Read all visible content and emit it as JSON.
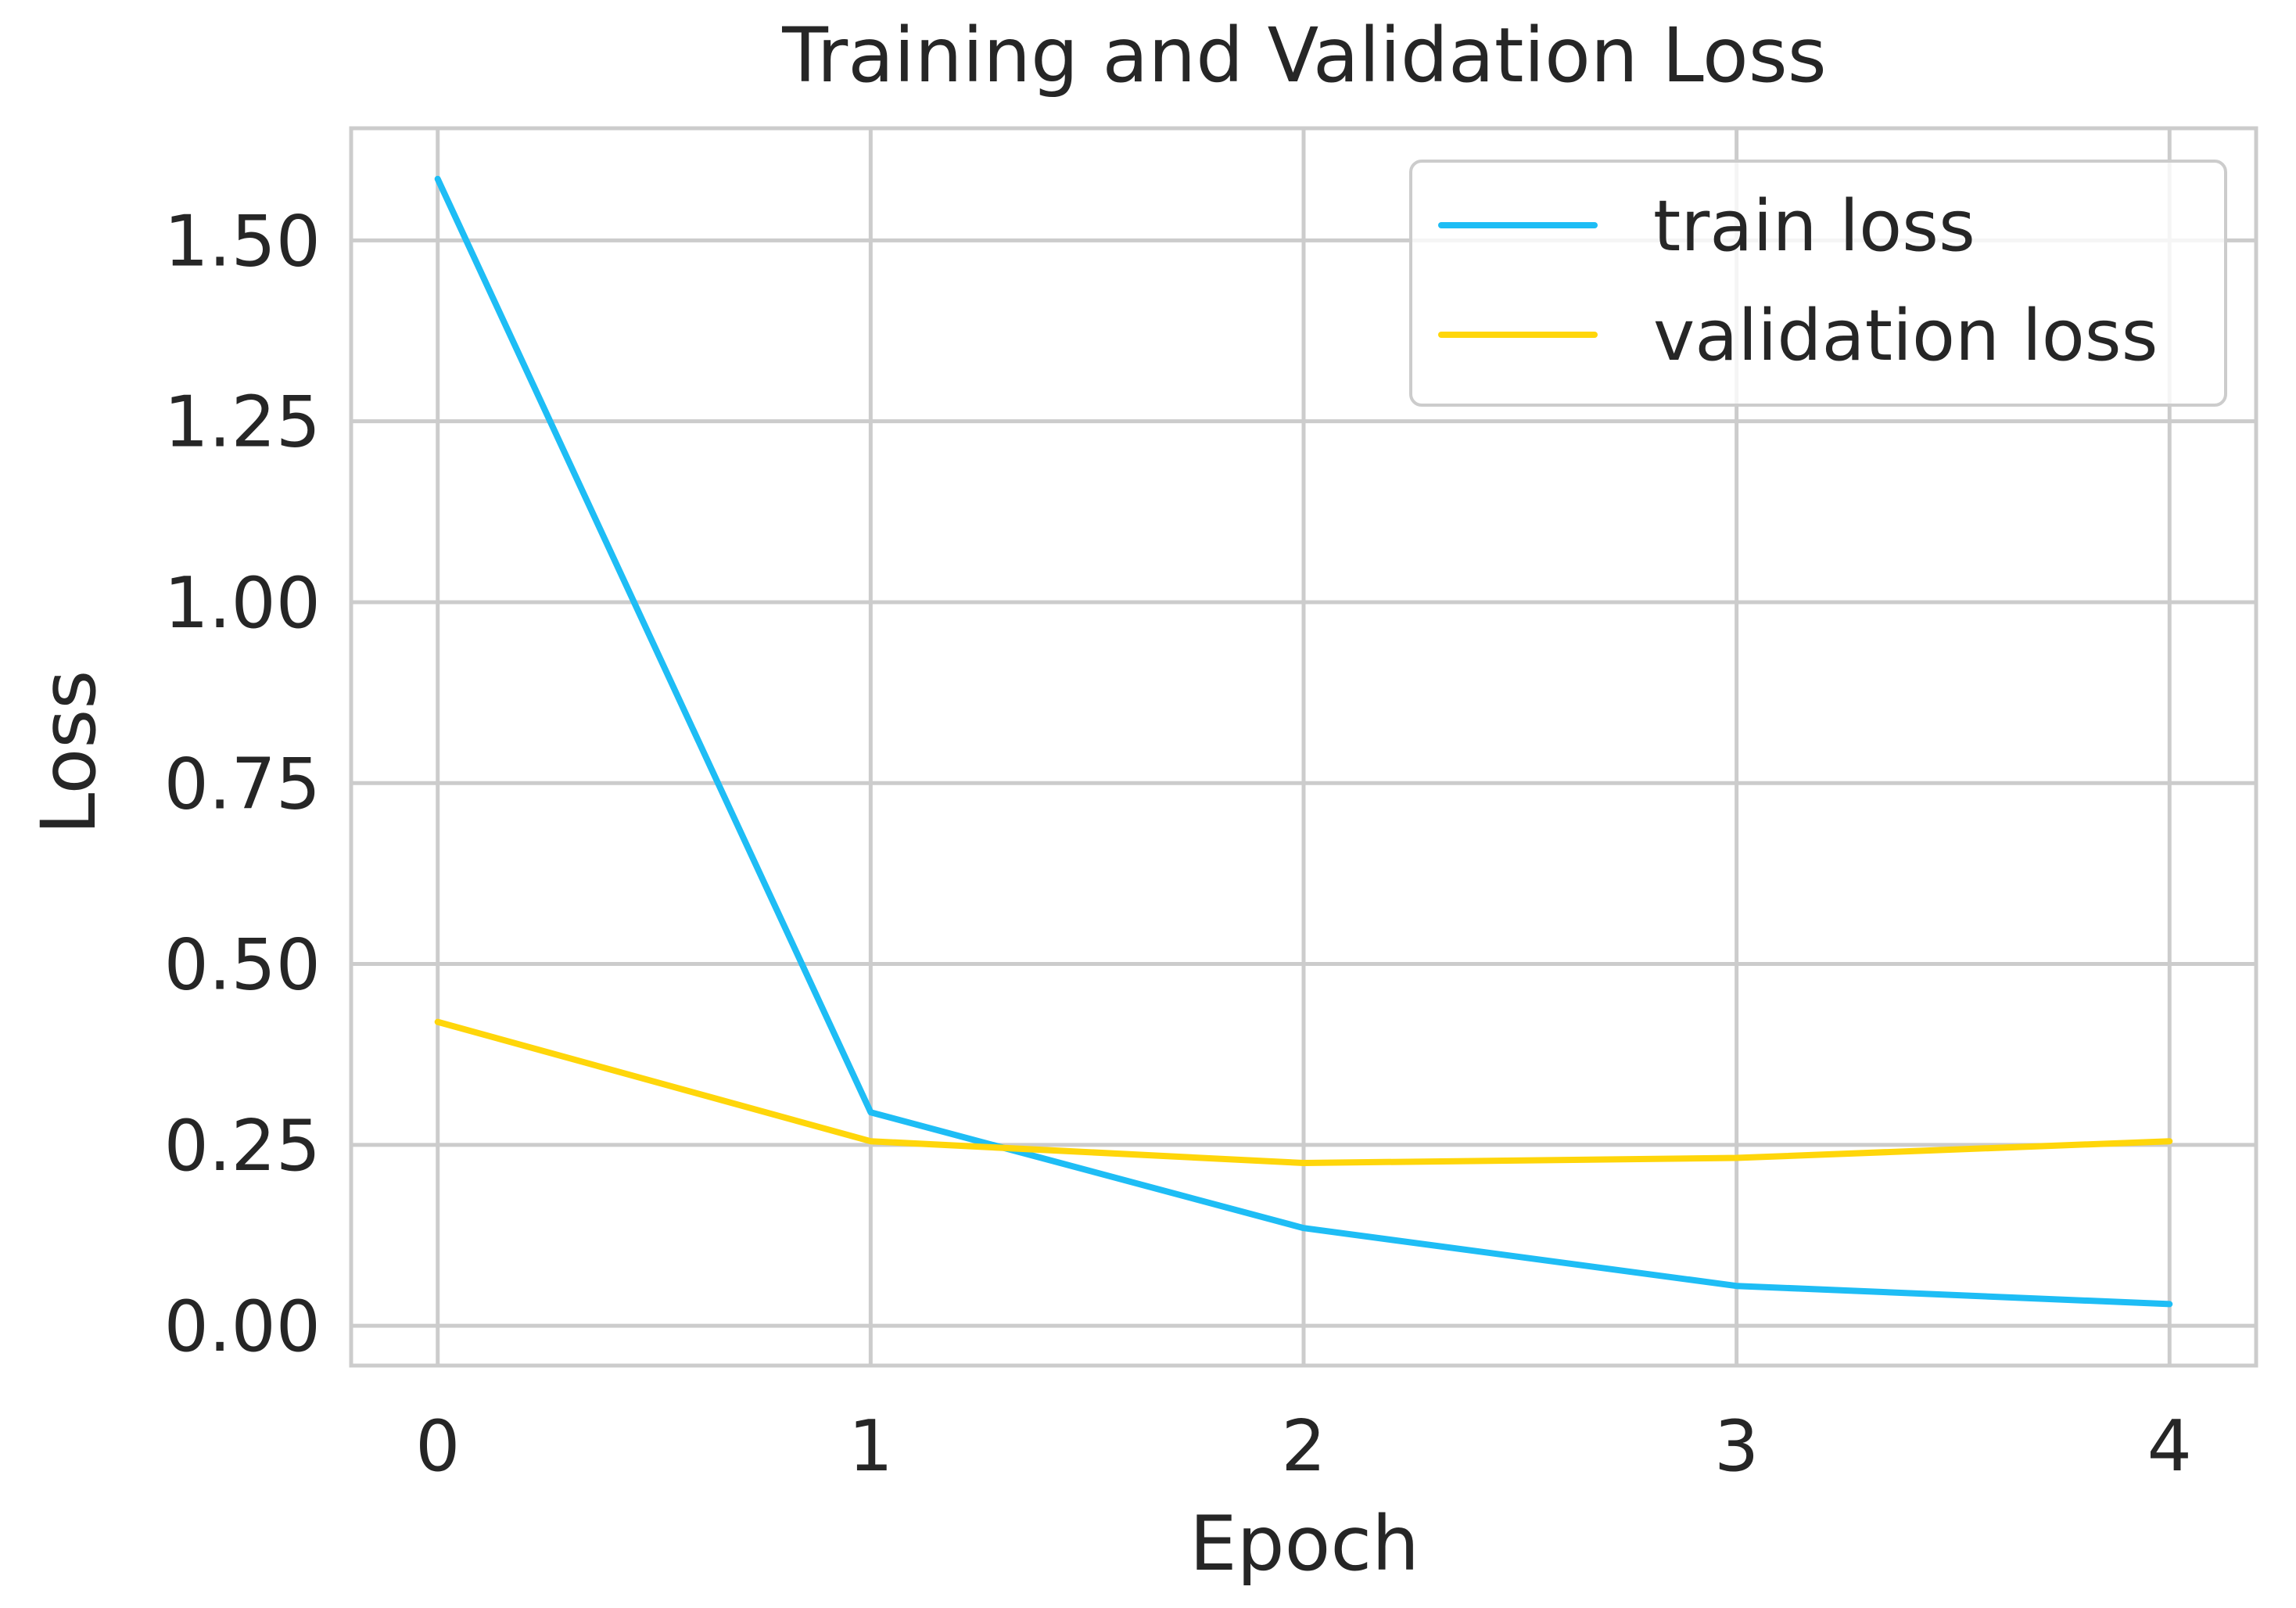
{
  "chart_data": {
    "type": "line",
    "title": "Training and Validation Loss",
    "xlabel": "Epoch",
    "ylabel": "Loss",
    "x": [
      0,
      1,
      2,
      3,
      4
    ],
    "x_ticks": [
      "0",
      "1",
      "2",
      "3",
      "4"
    ],
    "y_ticks": [
      "0.00",
      "0.25",
      "0.50",
      "0.75",
      "1.00",
      "1.25",
      "1.50"
    ],
    "xlim": [
      -0.2,
      4.2
    ],
    "ylim": [
      -0.055,
      1.655
    ],
    "grid": true,
    "legend_position": "top-right",
    "series": [
      {
        "name": "train loss",
        "color": "#1ebdf5",
        "values": [
          1.585,
          0.295,
          0.135,
          0.055,
          0.03
        ]
      },
      {
        "name": "validation loss",
        "color": "#ffd60a",
        "values": [
          0.42,
          0.255,
          0.225,
          0.232,
          0.255
        ]
      }
    ],
    "style": {
      "grid_color": "#cccccc",
      "text_color": "#262626",
      "background": "#ffffff"
    }
  }
}
